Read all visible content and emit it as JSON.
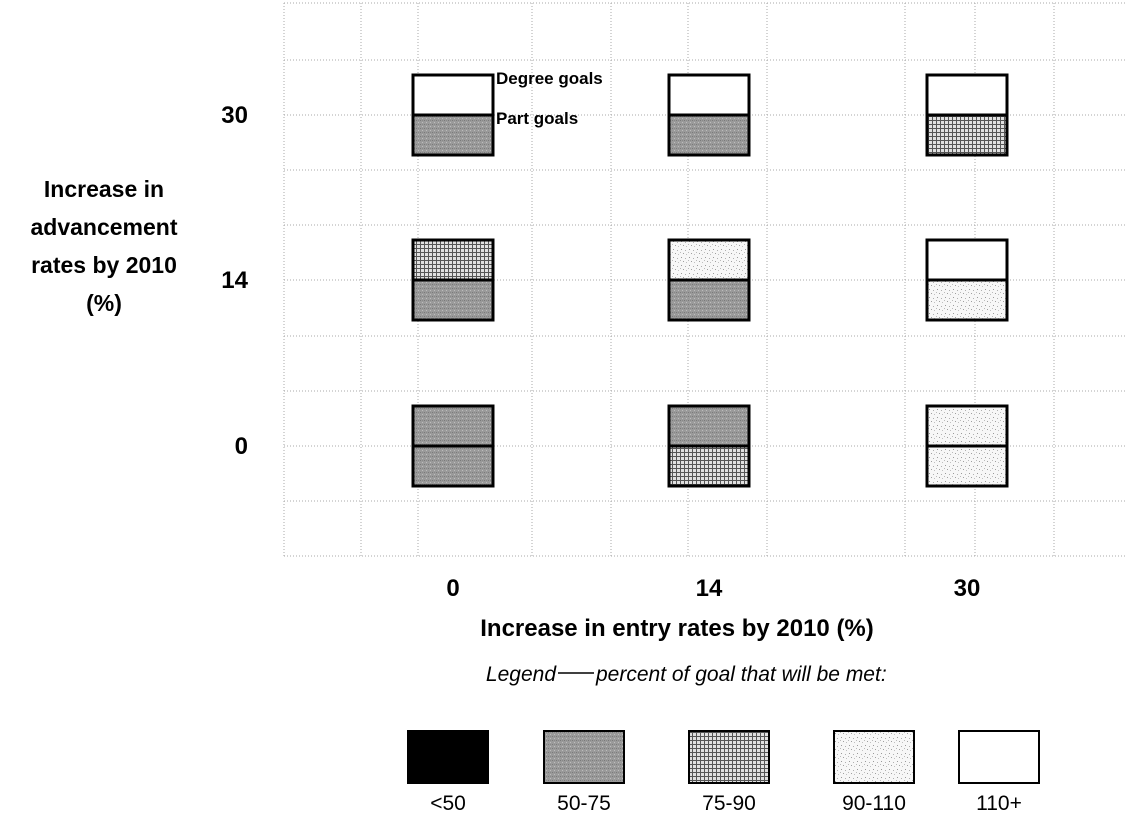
{
  "chart_data": {
    "type": "heatmap",
    "title": "",
    "xlabel": "Increase in entry rates by 2010 (%)",
    "ylabel": "Increase in advancement rates by 2010 (%)",
    "ylabel_lines": [
      "Increase in",
      "advancement",
      "rates by 2010",
      "(%)"
    ],
    "x_categories": [
      "0",
      "14",
      "30"
    ],
    "y_categories": [
      "30",
      "14",
      "0"
    ],
    "annotations": {
      "top_label": "Degree goals",
      "bottom_label": "Part goals"
    },
    "grid": true,
    "cells": [
      {
        "entry": "0",
        "advancement": "30",
        "degree_goals": "110+",
        "part_goals": "50-75"
      },
      {
        "entry": "14",
        "advancement": "30",
        "degree_goals": "110+",
        "part_goals": "50-75"
      },
      {
        "entry": "30",
        "advancement": "30",
        "degree_goals": "110+",
        "part_goals": "75-90"
      },
      {
        "entry": "0",
        "advancement": "14",
        "degree_goals": "75-90",
        "part_goals": "50-75"
      },
      {
        "entry": "14",
        "advancement": "14",
        "degree_goals": "90-110",
        "part_goals": "50-75"
      },
      {
        "entry": "30",
        "advancement": "14",
        "degree_goals": "110+",
        "part_goals": "90-110"
      },
      {
        "entry": "0",
        "advancement": "0",
        "degree_goals": "50-75",
        "part_goals": "50-75"
      },
      {
        "entry": "14",
        "advancement": "0",
        "degree_goals": "50-75",
        "part_goals": "75-90"
      },
      {
        "entry": "30",
        "advancement": "0",
        "degree_goals": "90-110",
        "part_goals": "90-110"
      }
    ],
    "legend": {
      "title": "Legend—percent of goal that will be met:",
      "title_left": "Legend",
      "title_right": "percent of goal that will be met:",
      "placement": "bottom",
      "items": [
        {
          "label": "<50",
          "color": "#000000"
        },
        {
          "label": "50-75",
          "color": "#9a9a9a"
        },
        {
          "label": "75-90",
          "color": "#b5b5b5"
        },
        {
          "label": "90-110",
          "color": "#ececec"
        },
        {
          "label": "110+",
          "color": "#ffffff"
        }
      ]
    }
  }
}
